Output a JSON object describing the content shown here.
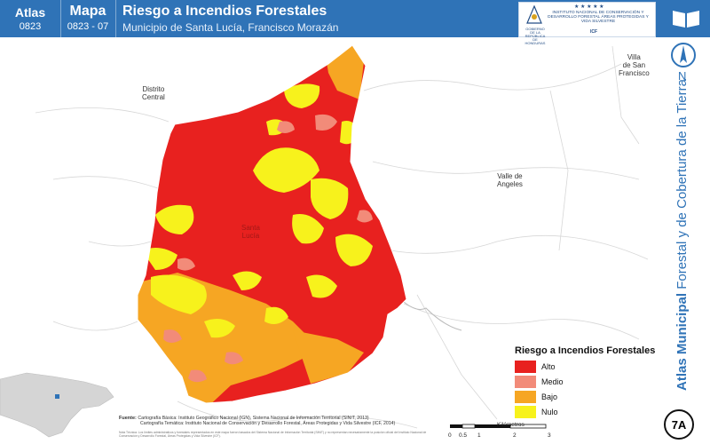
{
  "header": {
    "atlas_label": "Atlas",
    "atlas_code": "0823",
    "mapa_label": "Mapa",
    "mapa_code": "0823 - 07",
    "title": "Riesgo a Incendios Forestales",
    "subtitle": "Municipio de Santa Lucía, Francisco Morazán",
    "logo_gov_text": "GOBIERNO DE LA REPÚBLICA DE HONDURAS",
    "logo_icf_text": "INSTITUTO NACIONAL DE CONSERVACIÓN Y DESARROLLO FORESTAL ÁREAS PROTEGIDAS Y VIDA SILVESTRE",
    "logo_icf_abbr": "ICF"
  },
  "side_title_bold": "Atlas Municipal",
  "side_title_rest": " Forestal y de Cobertura de la Tierra",
  "north_letter": "N",
  "badge": "7A",
  "places": {
    "distrito_central": "Distrito\nCentral",
    "valle_angeles": "Valle de\nAngeles",
    "villa_san_francisco": "Villa\nde San\nFrancisco",
    "santa_lucia": "Santa\nLucía"
  },
  "legend": {
    "title": "Riesgo a Incendios Forestales",
    "items": [
      {
        "label": "Alto",
        "color": "#e8211f"
      },
      {
        "label": "Medio",
        "color": "#f28b79"
      },
      {
        "label": "Bajo",
        "color": "#f6a623"
      },
      {
        "label": "Nulo",
        "color": "#f7f21c"
      }
    ]
  },
  "sources": {
    "label": "Fuente:",
    "line1": "Cartografía Básica: Instituto Geográfico Nacional (IGN), Sistema Nacional de Información Territorial (SINIT, 2013)",
    "line2": "Cartografía Temática: Instituto Nacional de Conservación y Desarrollo Forestal, Áreas Protegidas y Vida Silvestre (ICF, 2014)",
    "fine_print": "Nota Técnica: Los límites administrativos y forestales representados en este mapa fueron basados del Sistema Nacional de Información Territorial (SINIT) y no representan necesariamente la posición oficial del Instituto Nacional de Conservación y Desarrollo Forestal, Áreas Protegidas y Vida Silvestre (ICF)."
  },
  "scale": {
    "ticks": [
      "0",
      "0.5",
      "1",
      "2",
      "3"
    ],
    "unit": "Kilómetros"
  },
  "colors": {
    "header_blue": "#2f73b7",
    "alto": "#e8211f",
    "medio": "#f28b79",
    "bajo": "#f6a623",
    "nulo": "#f7f21c"
  }
}
